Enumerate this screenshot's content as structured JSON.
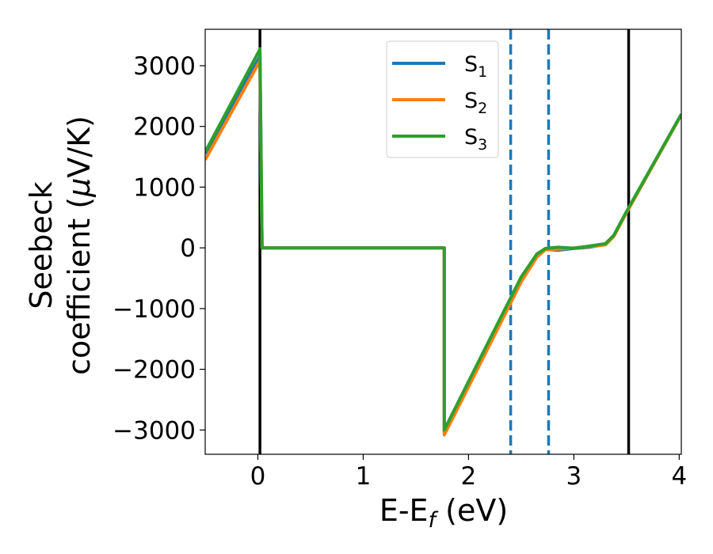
{
  "chart_data": {
    "type": "line",
    "xlabel": "E-E",
    "xlabel_sub": "f",
    "xlabel_unit": " (eV)",
    "ylabel_line1": "Seebeck",
    "ylabel_line2": "coefficient  (",
    "ylabel_mu": "μ",
    "ylabel_unit": "V/K)",
    "xlim": [
      -0.5,
      4.02
    ],
    "ylim": [
      -3400,
      3600
    ],
    "xticks": [
      0,
      1,
      2,
      3,
      4
    ],
    "yticks": [
      -3000,
      -2000,
      -1000,
      0,
      1000,
      2000,
      3000
    ],
    "ytick_labels": [
      "−3000",
      "−2000",
      "−1000",
      "0",
      "1000",
      "2000",
      "3000"
    ],
    "grid": false,
    "legend_position": "top-center",
    "series": [
      {
        "name": "S",
        "sub": "1",
        "color": "#1f77b4",
        "x": [
          -0.5,
          0.02,
          0.02,
          0.04,
          1.77,
          1.77,
          2.2,
          2.5,
          2.65,
          2.73,
          2.85,
          3.0,
          3.15,
          3.3,
          3.38,
          3.5,
          4.02
        ],
        "y": [
          1550,
          3150,
          3180,
          0,
          0,
          -3030,
          -1540,
          -500,
          -120,
          -20,
          -40,
          -10,
          10,
          60,
          200,
          590,
          2200
        ]
      },
      {
        "name": "S",
        "sub": "2",
        "color": "#ff7f0e",
        "x": [
          -0.5,
          0.02,
          0.02,
          0.04,
          1.77,
          1.77,
          2.2,
          2.5,
          2.65,
          2.73,
          2.85,
          3.0,
          3.15,
          3.3,
          3.38,
          3.5,
          4.02
        ],
        "y": [
          1450,
          3080,
          3120,
          0,
          0,
          -3080,
          -1600,
          -560,
          -150,
          -30,
          -20,
          0,
          20,
          50,
          190,
          580,
          2190
        ]
      },
      {
        "name": "S",
        "sub": "3",
        "color": "#2ca02c",
        "x": [
          -0.5,
          0.02,
          0.02,
          0.04,
          1.77,
          1.77,
          2.2,
          2.5,
          2.65,
          2.73,
          2.85,
          3.0,
          3.15,
          3.3,
          3.38,
          3.5,
          4.02
        ],
        "y": [
          1580,
          3270,
          3280,
          0,
          0,
          -3000,
          -1510,
          -480,
          -100,
          -10,
          10,
          -5,
          30,
          70,
          210,
          600,
          2200
        ]
      }
    ],
    "vlines": [
      {
        "x": 0.02,
        "style": "solid",
        "color": "#000000"
      },
      {
        "x": 3.52,
        "style": "solid",
        "color": "#000000"
      },
      {
        "x": 2.4,
        "style": "dashed",
        "color": "#1f77b4"
      },
      {
        "x": 2.76,
        "style": "dashed",
        "color": "#1f77b4"
      }
    ]
  }
}
